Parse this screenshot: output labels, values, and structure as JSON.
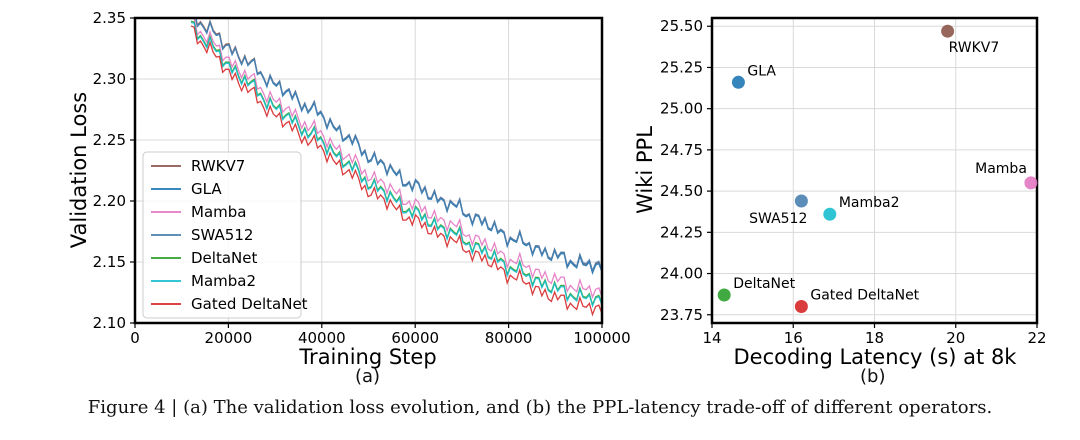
{
  "caption": "Figure 4 | (a) The validation loss evolution, and (b) the PPL-latency trade-off of different operators.",
  "chart_data": [
    {
      "type": "line",
      "panel_label": "(a)",
      "title": "",
      "xlabel": "Training Step",
      "ylabel": "Validation Loss",
      "xlim": [
        0,
        100000
      ],
      "ylim": [
        2.1,
        2.35
      ],
      "xticks": [
        0,
        20000,
        40000,
        60000,
        80000,
        100000
      ],
      "xtick_labels": [
        "0",
        "20000",
        "40000",
        "60000",
        "80000",
        "100000"
      ],
      "yticks": [
        2.1,
        2.15,
        2.2,
        2.25,
        2.3,
        2.35
      ],
      "ytick_labels": [
        "2.10",
        "2.15",
        "2.20",
        "2.25",
        "2.30",
        "2.35"
      ],
      "grid": true,
      "legend_position": "bottom-left",
      "x": [
        12000,
        20000,
        30000,
        40000,
        50000,
        60000,
        70000,
        80000,
        90000,
        100000
      ],
      "series": [
        {
          "name": "RWKV7",
          "color": "#8c564b",
          "values": [
            2.355,
            2.327,
            2.296,
            2.27,
            2.238,
            2.212,
            2.193,
            2.171,
            2.155,
            2.145
          ]
        },
        {
          "name": "GLA",
          "color": "#1f77b4",
          "values": [
            2.354,
            2.326,
            2.295,
            2.269,
            2.237,
            2.211,
            2.192,
            2.17,
            2.154,
            2.144
          ]
        },
        {
          "name": "Mamba",
          "color": "#e377c2",
          "values": [
            2.348,
            2.316,
            2.282,
            2.254,
            2.222,
            2.196,
            2.176,
            2.153,
            2.135,
            2.124
          ]
        },
        {
          "name": "SWA512",
          "color": "#4a7fb0",
          "values": [
            2.354,
            2.326,
            2.296,
            2.27,
            2.238,
            2.212,
            2.193,
            2.171,
            2.155,
            2.146
          ]
        },
        {
          "name": "DeltaNet",
          "color": "#2ca02c",
          "values": [
            2.345,
            2.312,
            2.277,
            2.249,
            2.216,
            2.19,
            2.17,
            2.147,
            2.128,
            2.118
          ]
        },
        {
          "name": "Mamba2",
          "color": "#17becf",
          "values": [
            2.344,
            2.311,
            2.276,
            2.248,
            2.215,
            2.189,
            2.169,
            2.146,
            2.127,
            2.117
          ]
        },
        {
          "name": "Gated DeltaNet",
          "color": "#d62728",
          "values": [
            2.341,
            2.306,
            2.27,
            2.242,
            2.209,
            2.183,
            2.163,
            2.14,
            2.12,
            2.11
          ]
        }
      ]
    },
    {
      "type": "scatter",
      "panel_label": "(b)",
      "title": "",
      "xlabel": "Decoding Latency (s) at 8k",
      "ylabel": "Wiki PPL",
      "xlim": [
        14,
        22
      ],
      "ylim": [
        23.7,
        25.55
      ],
      "xticks": [
        14,
        16,
        18,
        20,
        22
      ],
      "xtick_labels": [
        "14",
        "16",
        "18",
        "20",
        "22"
      ],
      "yticks": [
        23.75,
        24.0,
        24.25,
        24.5,
        24.75,
        25.0,
        25.25,
        25.5
      ],
      "ytick_labels": [
        "23.75",
        "24.00",
        "24.25",
        "24.50",
        "24.75",
        "25.00",
        "25.25",
        "25.50"
      ],
      "grid": true,
      "points": [
        {
          "name": "RWKV7",
          "x": 19.8,
          "y": 25.47,
          "color": "#8c564b",
          "label_pos": "below-right"
        },
        {
          "name": "GLA",
          "x": 14.65,
          "y": 25.16,
          "color": "#1f77b4",
          "label_pos": "above-right"
        },
        {
          "name": "Mamba",
          "x": 21.85,
          "y": 24.55,
          "color": "#e377c2",
          "label_pos": "above-left"
        },
        {
          "name": "SWA512",
          "x": 16.2,
          "y": 24.44,
          "color": "#4a7fb0",
          "label_pos": "below-left"
        },
        {
          "name": "Mamba2",
          "x": 16.9,
          "y": 24.36,
          "color": "#17becf",
          "label_pos": "above-right"
        },
        {
          "name": "DeltaNet",
          "x": 14.3,
          "y": 23.87,
          "color": "#2ca02c",
          "label_pos": "above-right"
        },
        {
          "name": "Gated DeltaNet",
          "x": 16.2,
          "y": 23.8,
          "color": "#d62728",
          "label_pos": "above-right"
        }
      ]
    }
  ]
}
